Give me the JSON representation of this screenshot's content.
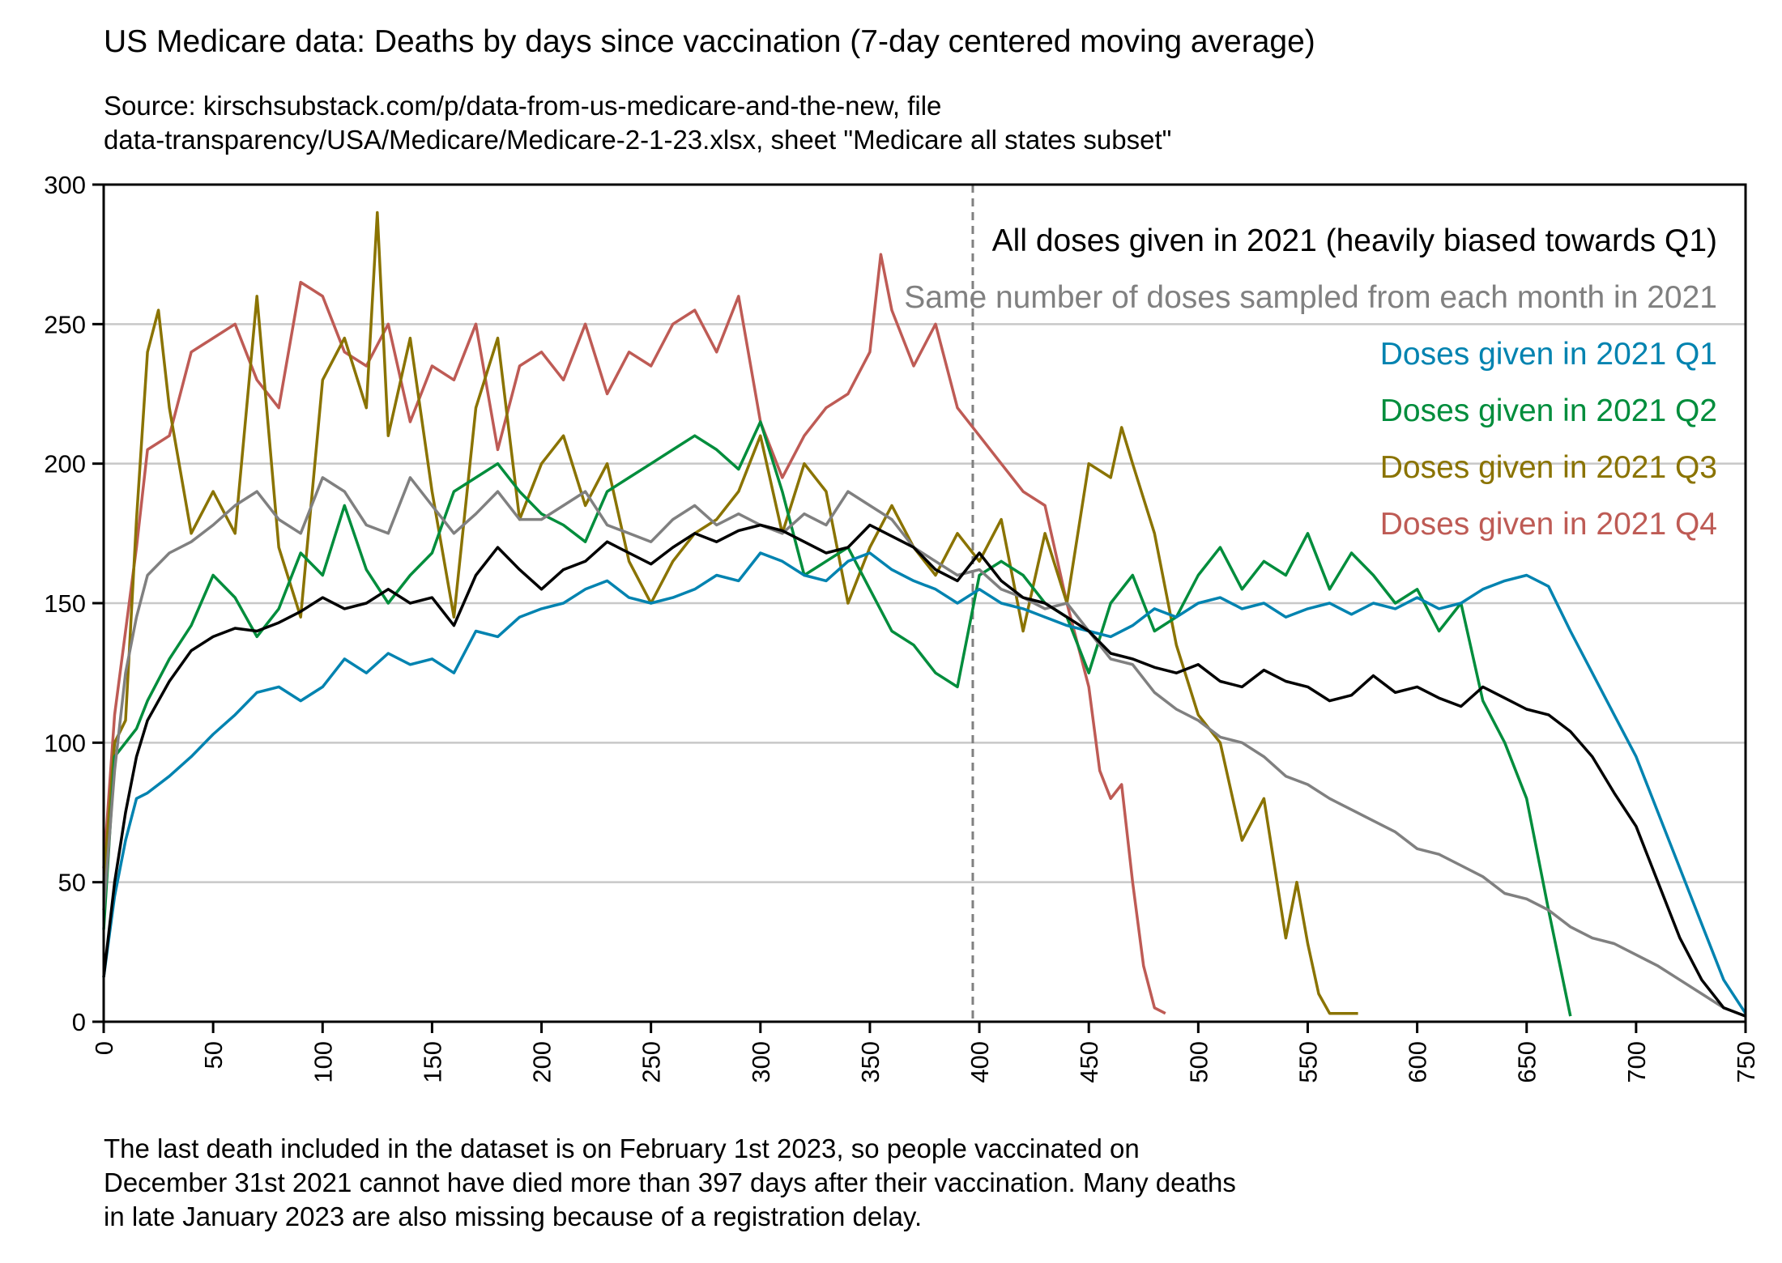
{
  "title": "US Medicare data: Deaths by days since vaccination (7-day centered moving average)",
  "subtitle_lines": [
    "Source: kirschsubstack.com/p/data-from-us-medicare-and-the-new, file",
    "data-transparency/USA/Medicare/Medicare-2-1-23.xlsx, sheet \"Medicare all states subset\""
  ],
  "footnote_lines": [
    "The last death included in the dataset is on February 1st 2023, so people vaccinated on",
    "December 31st 2021 cannot have died more than 397 days after their vaccination. Many deaths",
    "in late January 2023 are also missing because of a registration delay."
  ],
  "chart_data": {
    "type": "line",
    "title": "US Medicare data: Deaths by days since vaccination (7-day centered moving average)",
    "xlabel": "",
    "ylabel": "",
    "xlim": [
      0,
      750
    ],
    "ylim": [
      0,
      300
    ],
    "xticks": [
      0,
      50,
      100,
      150,
      200,
      250,
      300,
      350,
      400,
      450,
      500,
      550,
      600,
      650,
      700,
      750
    ],
    "yticks": [
      0,
      50,
      100,
      150,
      200,
      250,
      300
    ],
    "xtick_rotation": 90,
    "grid": "horizontal",
    "legend": "top-right",
    "annotations": [
      {
        "type": "vline",
        "x": 397,
        "style": "dashed",
        "color": "#808080"
      }
    ],
    "series": [
      {
        "name": "All doses given in 2021 (heavily biased towards Q1)",
        "color": "#000000",
        "x": [
          0,
          5,
          10,
          15,
          20,
          30,
          40,
          50,
          60,
          70,
          80,
          90,
          100,
          110,
          120,
          130,
          140,
          150,
          160,
          170,
          180,
          190,
          200,
          210,
          220,
          230,
          240,
          250,
          260,
          270,
          280,
          290,
          300,
          310,
          320,
          330,
          340,
          350,
          360,
          370,
          380,
          390,
          400,
          410,
          420,
          430,
          440,
          450,
          460,
          470,
          480,
          490,
          500,
          510,
          520,
          530,
          540,
          550,
          560,
          570,
          580,
          590,
          600,
          610,
          620,
          630,
          640,
          650,
          660,
          670,
          680,
          690,
          700,
          710,
          720,
          730,
          740,
          750
        ],
        "y": [
          16,
          50,
          75,
          95,
          108,
          122,
          133,
          138,
          141,
          140,
          143,
          147,
          152,
          148,
          150,
          155,
          150,
          152,
          142,
          160,
          170,
          162,
          155,
          162,
          165,
          172,
          168,
          164,
          170,
          175,
          172,
          176,
          178,
          176,
          172,
          168,
          170,
          178,
          174,
          170,
          162,
          158,
          168,
          158,
          152,
          150,
          145,
          140,
          132,
          130,
          127,
          125,
          128,
          122,
          120,
          126,
          122,
          120,
          115,
          117,
          124,
          118,
          120,
          116,
          113,
          120,
          116,
          112,
          110,
          104,
          95,
          82,
          70,
          50,
          30,
          15,
          5,
          2
        ]
      },
      {
        "name": "Same number of doses sampled from each month in 2021",
        "color": "#808080",
        "x": [
          0,
          5,
          10,
          15,
          20,
          30,
          40,
          50,
          60,
          70,
          80,
          90,
          100,
          110,
          120,
          130,
          140,
          150,
          160,
          170,
          180,
          190,
          200,
          210,
          220,
          230,
          240,
          250,
          260,
          270,
          280,
          290,
          300,
          310,
          320,
          330,
          340,
          350,
          360,
          370,
          380,
          390,
          400,
          410,
          420,
          430,
          440,
          450,
          460,
          470,
          480,
          490,
          500,
          510,
          520,
          530,
          540,
          550,
          560,
          570,
          580,
          590,
          600,
          610,
          620,
          630,
          640,
          650,
          660,
          670,
          680,
          690,
          700,
          710,
          720,
          730,
          740,
          750
        ],
        "y": [
          40,
          90,
          125,
          145,
          160,
          168,
          172,
          178,
          185,
          190,
          180,
          175,
          195,
          190,
          178,
          175,
          195,
          185,
          175,
          182,
          190,
          180,
          180,
          185,
          190,
          178,
          175,
          172,
          180,
          185,
          178,
          182,
          178,
          175,
          182,
          178,
          190,
          185,
          180,
          170,
          165,
          160,
          162,
          155,
          152,
          148,
          150,
          140,
          130,
          128,
          118,
          112,
          108,
          102,
          100,
          95,
          88,
          85,
          80,
          76,
          72,
          68,
          62,
          60,
          56,
          52,
          46,
          44,
          40,
          34,
          30,
          28,
          24,
          20,
          15,
          10,
          5,
          2
        ]
      },
      {
        "name": "Doses given in 2021 Q1",
        "color": "#0083B0",
        "x": [
          0,
          5,
          10,
          15,
          20,
          30,
          40,
          50,
          60,
          70,
          80,
          90,
          100,
          110,
          120,
          130,
          140,
          150,
          160,
          170,
          180,
          190,
          200,
          210,
          220,
          230,
          240,
          250,
          260,
          270,
          280,
          290,
          300,
          310,
          320,
          330,
          340,
          350,
          360,
          370,
          380,
          390,
          400,
          410,
          420,
          430,
          440,
          450,
          460,
          470,
          480,
          490,
          500,
          510,
          520,
          530,
          540,
          550,
          560,
          570,
          580,
          590,
          600,
          610,
          620,
          630,
          640,
          650,
          660,
          670,
          680,
          690,
          700,
          710,
          720,
          730,
          740,
          750
        ],
        "y": [
          16,
          45,
          65,
          80,
          82,
          88,
          95,
          103,
          110,
          118,
          120,
          115,
          120,
          130,
          125,
          132,
          128,
          130,
          125,
          140,
          138,
          145,
          148,
          150,
          155,
          158,
          152,
          150,
          152,
          155,
          160,
          158,
          168,
          165,
          160,
          158,
          165,
          168,
          162,
          158,
          155,
          150,
          155,
          150,
          148,
          145,
          142,
          140,
          138,
          142,
          148,
          145,
          150,
          152,
          148,
          150,
          145,
          148,
          150,
          146,
          150,
          148,
          152,
          148,
          150,
          155,
          158,
          160,
          156,
          140,
          125,
          110,
          95,
          75,
          55,
          35,
          15,
          3
        ]
      },
      {
        "name": "Doses given in 2021 Q2",
        "color": "#008D3C",
        "x": [
          0,
          5,
          10,
          15,
          20,
          30,
          40,
          50,
          60,
          70,
          80,
          90,
          100,
          110,
          120,
          130,
          140,
          150,
          160,
          170,
          180,
          190,
          200,
          210,
          220,
          230,
          240,
          250,
          260,
          270,
          280,
          290,
          300,
          310,
          320,
          330,
          340,
          350,
          360,
          370,
          380,
          390,
          400,
          410,
          420,
          430,
          440,
          450,
          460,
          470,
          480,
          490,
          500,
          510,
          520,
          530,
          540,
          550,
          560,
          570,
          580,
          590,
          600,
          610,
          620,
          630,
          640,
          650,
          660,
          670
        ],
        "y": [
          33,
          95,
          100,
          105,
          115,
          130,
          142,
          160,
          152,
          138,
          148,
          168,
          160,
          185,
          162,
          150,
          160,
          168,
          190,
          195,
          200,
          190,
          182,
          178,
          172,
          190,
          195,
          200,
          205,
          210,
          205,
          198,
          215,
          190,
          160,
          165,
          170,
          155,
          140,
          135,
          125,
          120,
          160,
          165,
          160,
          150,
          145,
          125,
          150,
          160,
          140,
          145,
          160,
          170,
          155,
          165,
          160,
          175,
          155,
          168,
          160,
          150,
          155,
          140,
          150,
          115,
          100,
          80,
          40,
          2
        ]
      },
      {
        "name": "Doses given in 2021 Q3",
        "color": "#8A7300",
        "x": [
          0,
          5,
          10,
          15,
          20,
          25,
          30,
          40,
          50,
          60,
          70,
          80,
          90,
          100,
          110,
          120,
          125,
          130,
          140,
          150,
          160,
          170,
          180,
          190,
          200,
          210,
          220,
          230,
          240,
          250,
          260,
          270,
          280,
          290,
          300,
          310,
          320,
          330,
          340,
          350,
          360,
          370,
          380,
          390,
          400,
          410,
          420,
          430,
          440,
          450,
          460,
          465,
          470,
          480,
          490,
          500,
          510,
          520,
          530,
          540,
          545,
          550,
          555,
          560,
          565,
          573
        ],
        "y": [
          50,
          100,
          108,
          180,
          240,
          255,
          220,
          175,
          190,
          175,
          260,
          170,
          145,
          230,
          245,
          220,
          290,
          210,
          245,
          190,
          145,
          220,
          245,
          180,
          200,
          210,
          185,
          200,
          165,
          150,
          165,
          175,
          180,
          190,
          210,
          175,
          200,
          190,
          150,
          170,
          185,
          170,
          160,
          175,
          165,
          180,
          140,
          175,
          150,
          200,
          195,
          213,
          200,
          175,
          135,
          110,
          100,
          65,
          80,
          30,
          50,
          28,
          10,
          3,
          3,
          3
        ]
      },
      {
        "name": "Doses given in 2021 Q4",
        "color": "#BE5B55",
        "x": [
          0,
          5,
          10,
          15,
          20,
          30,
          40,
          50,
          60,
          70,
          80,
          90,
          100,
          110,
          120,
          130,
          140,
          150,
          160,
          170,
          180,
          190,
          200,
          210,
          220,
          230,
          240,
          250,
          260,
          270,
          280,
          290,
          300,
          310,
          320,
          330,
          340,
          350,
          355,
          360,
          370,
          380,
          390,
          400,
          410,
          420,
          430,
          440,
          450,
          455,
          460,
          465,
          470,
          475,
          480,
          485
        ],
        "y": [
          55,
          110,
          140,
          170,
          205,
          210,
          240,
          245,
          250,
          230,
          220,
          265,
          260,
          240,
          235,
          250,
          215,
          235,
          230,
          250,
          205,
          235,
          240,
          230,
          250,
          225,
          240,
          235,
          250,
          255,
          240,
          260,
          215,
          195,
          210,
          220,
          225,
          240,
          275,
          255,
          235,
          250,
          220,
          210,
          200,
          190,
          185,
          150,
          120,
          90,
          80,
          85,
          50,
          20,
          5,
          3
        ]
      }
    ]
  }
}
